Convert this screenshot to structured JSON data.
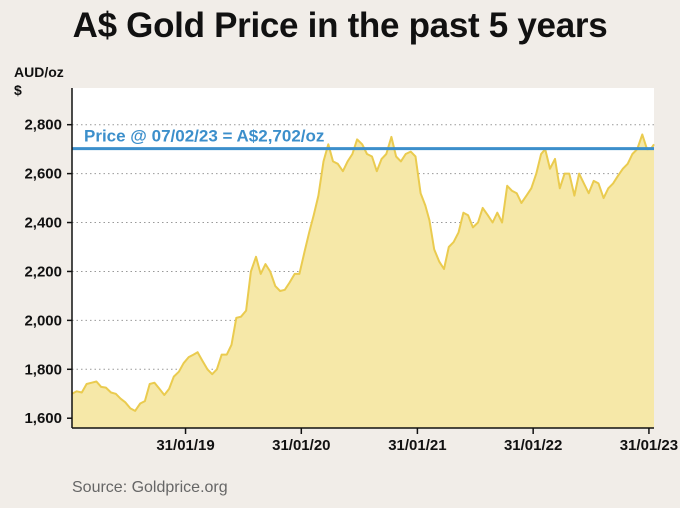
{
  "title": "A$ Gold Price in the past 5 years",
  "unit_line1": "AUD/oz",
  "unit_line2": "$",
  "source": "Source: Goldprice.org",
  "chart_data": {
    "type": "area",
    "title": "A$ Gold Price in the past 5 years",
    "ylabel": "AUD/oz",
    "ylim": [
      1560,
      2950
    ],
    "yticks": [
      1600,
      1800,
      2000,
      2200,
      2400,
      2600,
      2800
    ],
    "ytick_labels": [
      "1,600",
      "1,800",
      "2,000",
      "2,200",
      "2,400",
      "2,600",
      "2,800"
    ],
    "xlim": [
      "2018-02-07",
      "2023-02-16"
    ],
    "xticks": [
      "2019-01-31",
      "2020-01-31",
      "2021-01-31",
      "2022-01-31",
      "2023-01-31"
    ],
    "xtick_labels": [
      "31/01/19",
      "31/01/20",
      "31/01/21",
      "31/01/22",
      "31/01/23"
    ],
    "grid": "horizontal-dotted",
    "fill_color": "#f6e8a8",
    "line_color": "#eacb4f",
    "reference_line": {
      "value": 2702,
      "color": "#3c8fcb",
      "label": "Price @ 07/02/23 = A$2,702/oz"
    },
    "series": [
      {
        "x": [
          "2018-02-07",
          "2018-02-22",
          "2018-03-10",
          "2018-03-25",
          "2018-04-10",
          "2018-04-25",
          "2018-05-10",
          "2018-05-25",
          "2018-06-10",
          "2018-06-25",
          "2018-07-10",
          "2018-07-25",
          "2018-08-10",
          "2018-08-25",
          "2018-09-10",
          "2018-09-25",
          "2018-10-10",
          "2018-10-25",
          "2018-11-10",
          "2018-11-25",
          "2018-12-10",
          "2018-12-25",
          "2019-01-10",
          "2019-01-25",
          "2019-02-10",
          "2019-02-25",
          "2019-03-10",
          "2019-03-25",
          "2019-04-10",
          "2019-04-25",
          "2019-05-10",
          "2019-05-25",
          "2019-06-10",
          "2019-06-25",
          "2019-07-10",
          "2019-07-25",
          "2019-08-10",
          "2019-08-25",
          "2019-09-10",
          "2019-09-25",
          "2019-10-10",
          "2019-10-25",
          "2019-11-10",
          "2019-11-25",
          "2019-12-10",
          "2019-12-25",
          "2020-01-10",
          "2020-01-25",
          "2020-02-10",
          "2020-02-25",
          "2020-03-10",
          "2020-03-25",
          "2020-04-10",
          "2020-04-25",
          "2020-05-10",
          "2020-05-25",
          "2020-06-10",
          "2020-06-25",
          "2020-07-10",
          "2020-07-25",
          "2020-08-10",
          "2020-08-25",
          "2020-09-10",
          "2020-09-25",
          "2020-10-10",
          "2020-10-25",
          "2020-11-10",
          "2020-11-25",
          "2020-12-10",
          "2020-12-25",
          "2021-01-10",
          "2021-01-25",
          "2021-02-10",
          "2021-02-25",
          "2021-03-10",
          "2021-03-25",
          "2021-04-10",
          "2021-04-25",
          "2021-05-10",
          "2021-05-25",
          "2021-06-10",
          "2021-06-25",
          "2021-07-10",
          "2021-07-25",
          "2021-08-10",
          "2021-08-25",
          "2021-09-10",
          "2021-09-25",
          "2021-10-10",
          "2021-10-25",
          "2021-11-10",
          "2021-11-25",
          "2021-12-10",
          "2021-12-25",
          "2022-01-10",
          "2022-01-25",
          "2022-02-10",
          "2022-02-25",
          "2022-03-10",
          "2022-03-25",
          "2022-04-10",
          "2022-04-25",
          "2022-05-10",
          "2022-05-25",
          "2022-06-10",
          "2022-06-25",
          "2022-07-10",
          "2022-07-25",
          "2022-08-10",
          "2022-08-25",
          "2022-09-10",
          "2022-09-25",
          "2022-10-10",
          "2022-10-25",
          "2022-11-10",
          "2022-11-25",
          "2022-12-10",
          "2022-12-25",
          "2023-01-10",
          "2023-01-25",
          "2023-02-07",
          "2023-02-16"
        ],
        "values": [
          1700,
          1710,
          1705,
          1740,
          1745,
          1750,
          1728,
          1725,
          1705,
          1700,
          1680,
          1665,
          1640,
          1630,
          1660,
          1670,
          1740,
          1745,
          1720,
          1695,
          1720,
          1770,
          1790,
          1825,
          1850,
          1860,
          1870,
          1835,
          1800,
          1780,
          1800,
          1860,
          1860,
          1900,
          2010,
          2015,
          2040,
          2200,
          2260,
          2190,
          2230,
          2200,
          2140,
          2120,
          2125,
          2155,
          2190,
          2190,
          2280,
          2360,
          2430,
          2510,
          2650,
          2720,
          2650,
          2640,
          2610,
          2650,
          2680,
          2740,
          2720,
          2680,
          2670,
          2610,
          2660,
          2680,
          2750,
          2670,
          2650,
          2680,
          2690,
          2670,
          2520,
          2470,
          2410,
          2290,
          2240,
          2210,
          2300,
          2320,
          2360,
          2440,
          2430,
          2380,
          2400,
          2460,
          2430,
          2400,
          2440,
          2400,
          2550,
          2530,
          2520,
          2480,
          2510,
          2540,
          2600,
          2680,
          2700,
          2620,
          2660,
          2540,
          2600,
          2600,
          2510,
          2600,
          2560,
          2520,
          2570,
          2560,
          2500,
          2540,
          2560,
          2590,
          2620,
          2640,
          2680,
          2700,
          2760,
          2700,
          2702,
          2720
        ]
      }
    ]
  }
}
